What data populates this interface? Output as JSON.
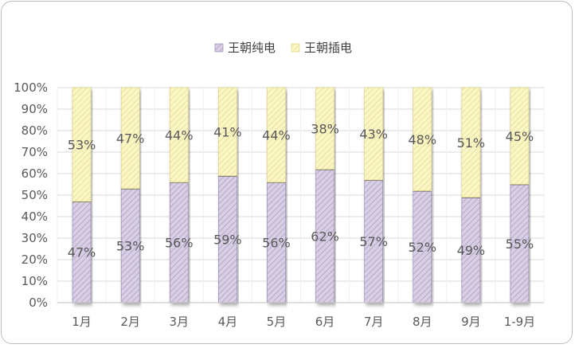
{
  "chart_data": {
    "type": "bar",
    "stacked": true,
    "percent_axis": true,
    "categories": [
      "1月",
      "2月",
      "3月",
      "4月",
      "5月",
      "6月",
      "7月",
      "8月",
      "9月",
      "1-9月"
    ],
    "series": [
      {
        "name": "王朝纯电",
        "color": "#c9bfd8",
        "values": [
          47,
          53,
          56,
          59,
          56,
          62,
          57,
          52,
          49,
          55
        ]
      },
      {
        "name": "王朝插电",
        "color": "#f6f0b0",
        "values": [
          53,
          47,
          44,
          41,
          44,
          38,
          43,
          48,
          51,
          45
        ]
      }
    ],
    "data_labels": {
      "王朝纯电": [
        "47%",
        "53%",
        "56%",
        "59%",
        "56%",
        "62%",
        "57%",
        "52%",
        "49%",
        "55%"
      ],
      "王朝插电": [
        "53%",
        "47%",
        "44%",
        "41%",
        "44%",
        "38%",
        "43%",
        "48%",
        "51%",
        "45%"
      ]
    },
    "yticks": [
      "0%",
      "10%",
      "20%",
      "30%",
      "40%",
      "50%",
      "60%",
      "70%",
      "80%",
      "90%",
      "100%"
    ],
    "ylim": [
      0,
      100
    ],
    "legend_position": "top",
    "grid": true
  }
}
